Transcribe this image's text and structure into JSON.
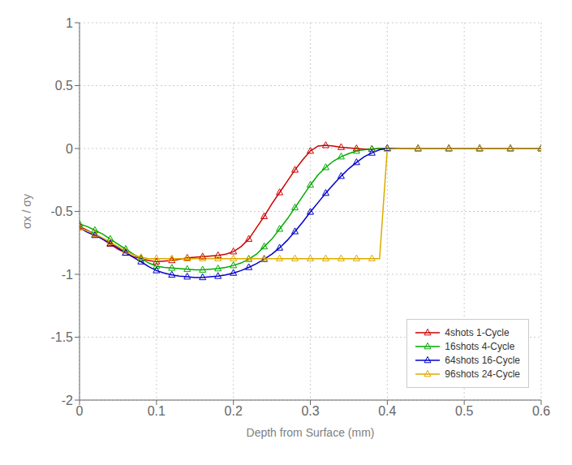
{
  "chart_data": {
    "type": "line",
    "xlabel": "Depth from Surface (mm)",
    "ylabel": "σx / σy",
    "x": [
      0.0,
      0.01,
      0.02,
      0.03,
      0.04,
      0.05,
      0.06,
      0.07,
      0.08,
      0.09,
      0.1,
      0.11,
      0.12,
      0.13,
      0.14,
      0.15,
      0.16,
      0.17,
      0.18,
      0.19,
      0.2,
      0.21,
      0.22,
      0.23,
      0.24,
      0.25,
      0.26,
      0.27,
      0.28,
      0.29,
      0.3,
      0.31,
      0.32,
      0.33,
      0.34,
      0.35,
      0.36,
      0.37,
      0.38,
      0.39,
      0.4,
      0.42,
      0.44,
      0.46,
      0.48,
      0.5,
      0.52,
      0.54,
      0.56,
      0.58,
      0.6
    ],
    "series": [
      {
        "name": "4shots 1-Cycle",
        "color": "#cc0000",
        "marker": "triangle",
        "values": [
          -0.62,
          -0.65,
          -0.68,
          -0.72,
          -0.76,
          -0.8,
          -0.83,
          -0.86,
          -0.875,
          -0.89,
          -0.9,
          -0.895,
          -0.89,
          -0.88,
          -0.87,
          -0.865,
          -0.86,
          -0.855,
          -0.85,
          -0.84,
          -0.82,
          -0.78,
          -0.72,
          -0.63,
          -0.54,
          -0.44,
          -0.35,
          -0.26,
          -0.17,
          -0.09,
          -0.02,
          0.02,
          0.025,
          0.02,
          0.01,
          0.005,
          0.0,
          -0.005,
          -0.005,
          0.0,
          0.0,
          0.0,
          0.0,
          0.0,
          0.0,
          0.0,
          0.0,
          0.0,
          0.0,
          0.0,
          0.0
        ]
      },
      {
        "name": "16shots 4-Cycle",
        "color": "#00aa00",
        "marker": "triangle",
        "values": [
          -0.6,
          -0.62,
          -0.65,
          -0.68,
          -0.72,
          -0.76,
          -0.8,
          -0.84,
          -0.875,
          -0.91,
          -0.935,
          -0.945,
          -0.95,
          -0.955,
          -0.96,
          -0.965,
          -0.965,
          -0.96,
          -0.955,
          -0.945,
          -0.93,
          -0.91,
          -0.88,
          -0.84,
          -0.78,
          -0.72,
          -0.64,
          -0.56,
          -0.47,
          -0.38,
          -0.29,
          -0.21,
          -0.15,
          -0.1,
          -0.065,
          -0.04,
          -0.02,
          -0.01,
          -0.005,
          0.0,
          0.0,
          0.0,
          0.0,
          0.0,
          0.0,
          0.0,
          0.0,
          0.0,
          0.0,
          0.0,
          0.0
        ]
      },
      {
        "name": "64shots 16-Cycle",
        "color": "#0000cc",
        "marker": "triangle",
        "values": [
          -0.63,
          -0.665,
          -0.69,
          -0.72,
          -0.755,
          -0.79,
          -0.83,
          -0.865,
          -0.9,
          -0.94,
          -0.97,
          -0.99,
          -1.005,
          -1.015,
          -1.02,
          -1.025,
          -1.025,
          -1.02,
          -1.015,
          -1.005,
          -0.99,
          -0.97,
          -0.945,
          -0.915,
          -0.88,
          -0.84,
          -0.79,
          -0.73,
          -0.66,
          -0.585,
          -0.505,
          -0.43,
          -0.355,
          -0.285,
          -0.22,
          -0.16,
          -0.11,
          -0.065,
          -0.035,
          -0.01,
          0.0,
          0.0,
          0.0,
          0.0,
          0.0,
          0.0,
          0.0,
          0.0,
          0.0,
          0.0,
          0.0
        ]
      },
      {
        "name": "96shots 24-Cycle",
        "color": "#ddaa00",
        "marker": "triangle",
        "values": [
          -0.63,
          -0.655,
          -0.68,
          -0.71,
          -0.745,
          -0.78,
          -0.815,
          -0.845,
          -0.865,
          -0.875,
          -0.875,
          -0.875,
          -0.875,
          -0.875,
          -0.875,
          -0.875,
          -0.875,
          -0.875,
          -0.875,
          -0.875,
          -0.875,
          -0.875,
          -0.875,
          -0.875,
          -0.875,
          -0.875,
          -0.875,
          -0.875,
          -0.875,
          -0.875,
          -0.875,
          -0.875,
          -0.875,
          -0.875,
          -0.875,
          -0.875,
          -0.875,
          -0.875,
          -0.875,
          -0.875,
          -0.005,
          0.0,
          0.0,
          0.0,
          0.0,
          0.0,
          0.0,
          0.0,
          0.0,
          0.0,
          0.0
        ]
      }
    ],
    "xlim": [
      0,
      0.6
    ],
    "ylim": [
      -2,
      1
    ],
    "xticks": [
      0.0,
      0.1,
      0.2,
      0.3,
      0.4,
      0.5,
      0.6
    ],
    "yticks": [
      -2.0,
      -1.5,
      -1.0,
      -0.5,
      0.0,
      0.5,
      1.0
    ],
    "grid": true,
    "legend": "lower right"
  }
}
